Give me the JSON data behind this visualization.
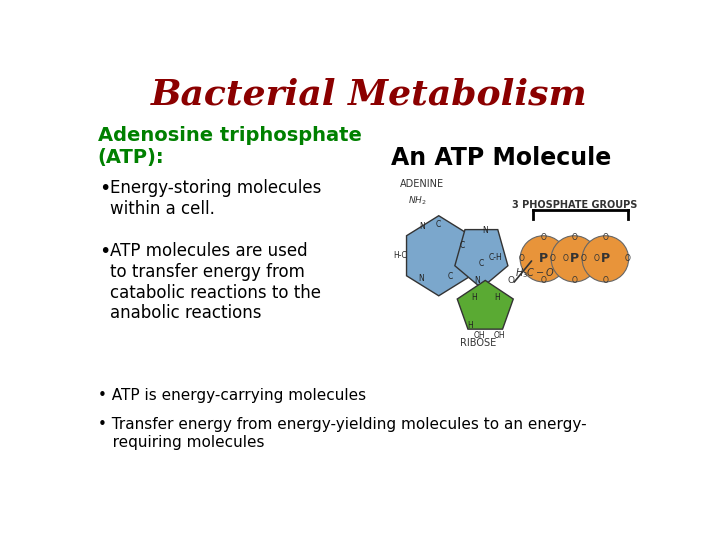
{
  "title": "Bacterial Metabolism",
  "title_color": "#8B0000",
  "title_fontsize": 26,
  "title_style": "italic",
  "title_weight": "bold",
  "subtitle": "Adenosine triphosphate\n(ATP):",
  "subtitle_color": "#008000",
  "subtitle_fontsize": 14,
  "subtitle_weight": "bold",
  "bullet1_text": "Energy-storing molecules\nwithin a cell.",
  "bullet2_text": "ATP molecules are used\nto transfer energy from\ncatabolic reactions to the\nanabolic reactions",
  "bullet3_text": "ATP is energy-carrying molecules",
  "bullet4_text": "Transfer energy from energy-yielding molecules to an energy-\n   requiring molecules",
  "bullet_color": "#000000",
  "bullet_fontsize": 12,
  "bg_color": "#FFFFFF",
  "atp_title": "An ATP Molecule",
  "atp_title_fontsize": 17,
  "adenine_label": "ADENINE",
  "ribose_label": "RIBOSE",
  "phosphate_label": "3 PHOSPHATE GROUPS",
  "blue_color": "#7BA7CC",
  "green_color": "#5AAA33",
  "orange_color": "#E8943A"
}
